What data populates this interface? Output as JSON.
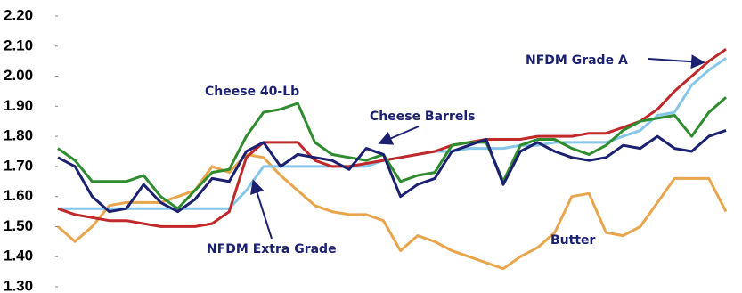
{
  "chart_data": {
    "type": "line",
    "ylim": [
      1.3,
      2.2
    ],
    "yticks": [
      {
        "value": 1.3,
        "label": "1.30"
      },
      {
        "value": 1.4,
        "label": "1.40"
      },
      {
        "value": 1.5,
        "label": "1.50"
      },
      {
        "value": 1.6,
        "label": "1.60"
      },
      {
        "value": 1.7,
        "label": "1.70"
      },
      {
        "value": 1.8,
        "label": "1.80"
      },
      {
        "value": 1.9,
        "label": "1.90"
      },
      {
        "value": 2.0,
        "label": "2.00"
      },
      {
        "value": 2.1,
        "label": "2.10"
      },
      {
        "value": 2.2,
        "label": "2.20"
      }
    ],
    "grid": false,
    "series": [
      {
        "name": "Butter",
        "color": "#e8a54b",
        "values": [
          1.5,
          1.45,
          1.5,
          1.57,
          1.58,
          1.58,
          1.58,
          1.6,
          1.62,
          1.7,
          1.68,
          1.74,
          1.73,
          1.67,
          1.62,
          1.57,
          1.55,
          1.54,
          1.54,
          1.52,
          1.42,
          1.47,
          1.45,
          1.42,
          1.4,
          1.38,
          1.36,
          1.4,
          1.43,
          1.48,
          1.6,
          1.61,
          1.48,
          1.47,
          1.5,
          1.58,
          1.66,
          1.66,
          1.66,
          1.55
        ]
      },
      {
        "name": "NFDM Extra Grade",
        "color": "#86c6e8",
        "values": [
          1.56,
          1.56,
          1.56,
          1.56,
          1.56,
          1.56,
          1.56,
          1.56,
          1.56,
          1.56,
          1.56,
          1.62,
          1.7,
          1.7,
          1.7,
          1.7,
          1.7,
          1.7,
          1.7,
          1.72,
          1.73,
          1.74,
          1.75,
          1.75,
          1.76,
          1.76,
          1.76,
          1.77,
          1.77,
          1.78,
          1.78,
          1.78,
          1.78,
          1.8,
          1.82,
          1.87,
          1.88,
          1.97,
          2.02,
          2.06
        ]
      },
      {
        "name": "NFDM Grade A",
        "color": "#c0282a",
        "values": [
          1.56,
          1.54,
          1.53,
          1.52,
          1.52,
          1.51,
          1.5,
          1.5,
          1.5,
          1.51,
          1.55,
          1.73,
          1.78,
          1.78,
          1.78,
          1.72,
          1.7,
          1.7,
          1.71,
          1.72,
          1.73,
          1.74,
          1.75,
          1.77,
          1.78,
          1.79,
          1.79,
          1.79,
          1.8,
          1.8,
          1.8,
          1.81,
          1.81,
          1.83,
          1.85,
          1.89,
          1.95,
          2.0,
          2.05,
          2.09
        ]
      },
      {
        "name": "Cheese 40-Lb",
        "color": "#2e8b2e",
        "values": [
          1.76,
          1.72,
          1.65,
          1.65,
          1.65,
          1.67,
          1.6,
          1.56,
          1.62,
          1.68,
          1.69,
          1.8,
          1.88,
          1.89,
          1.91,
          1.78,
          1.74,
          1.73,
          1.72,
          1.74,
          1.65,
          1.67,
          1.68,
          1.77,
          1.78,
          1.78,
          1.65,
          1.77,
          1.79,
          1.79,
          1.76,
          1.74,
          1.77,
          1.82,
          1.85,
          1.86,
          1.87,
          1.8,
          1.88,
          1.93
        ]
      },
      {
        "name": "Cheese Barrels",
        "color": "#1b2070",
        "values": [
          1.73,
          1.7,
          1.6,
          1.55,
          1.56,
          1.64,
          1.58,
          1.55,
          1.59,
          1.66,
          1.65,
          1.75,
          1.78,
          1.7,
          1.74,
          1.73,
          1.72,
          1.69,
          1.76,
          1.74,
          1.6,
          1.64,
          1.66,
          1.75,
          1.77,
          1.79,
          1.64,
          1.75,
          1.78,
          1.75,
          1.73,
          1.72,
          1.73,
          1.77,
          1.76,
          1.8,
          1.76,
          1.75,
          1.8,
          1.82
        ]
      }
    ]
  }
}
